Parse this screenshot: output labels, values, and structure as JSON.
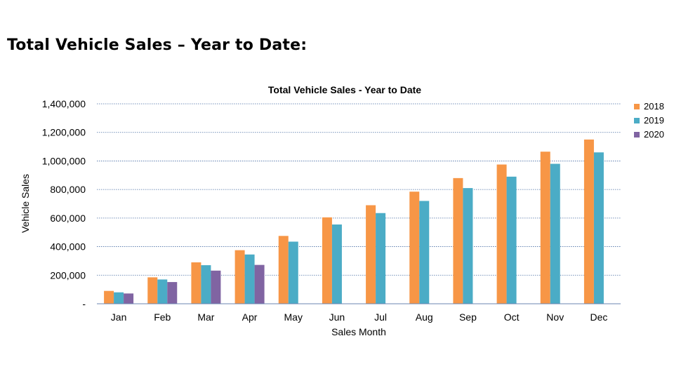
{
  "page_heading": "Total Vehicle Sales – Year to Date:",
  "chart_data": {
    "type": "bar",
    "title": "Total Vehicle Sales  - Year to Date",
    "xlabel": "Sales Month",
    "ylabel": "Vehicle Sales",
    "ylim": [
      0,
      1400000
    ],
    "yticks": [
      "-",
      "200,000",
      "400,000",
      "600,000",
      "800,000",
      "1,000,000",
      "1,200,000",
      "1,400,000"
    ],
    "categories": [
      "Jan",
      "Feb",
      "Mar",
      "Apr",
      "May",
      "Jun",
      "Jul",
      "Aug",
      "Sep",
      "Oct",
      "Nov",
      "Dec"
    ],
    "grid": true,
    "legend_position": "right",
    "series": [
      {
        "name": "2018",
        "color": "#F79646",
        "values": [
          90000,
          185000,
          290000,
          375000,
          475000,
          605000,
          690000,
          785000,
          880000,
          975000,
          1065000,
          1150000
        ]
      },
      {
        "name": "2019",
        "color": "#4BACC6",
        "values": [
          80000,
          170000,
          270000,
          345000,
          435000,
          555000,
          635000,
          720000,
          810000,
          890000,
          980000,
          1060000
        ]
      },
      {
        "name": "2020",
        "color": "#8064A2",
        "values": [
          72000,
          152000,
          232000,
          272000,
          null,
          null,
          null,
          null,
          null,
          null,
          null,
          null
        ]
      }
    ]
  }
}
